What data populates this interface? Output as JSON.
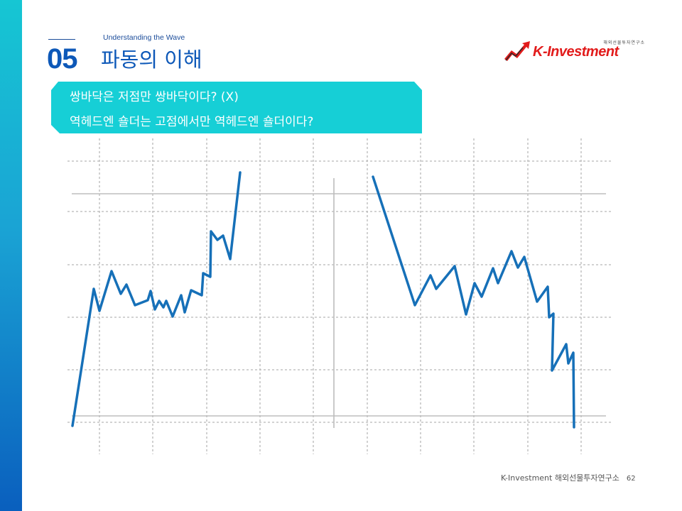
{
  "header": {
    "subtitle": "Understanding the Wave",
    "section_number": "05",
    "title": "파동의 이해"
  },
  "logo": {
    "small_text": "해외선물투자연구소",
    "brand": "K-Investment",
    "brand_color": "#e21b1b"
  },
  "callout": {
    "line1": "쌍바닥은 저점만 쌍바닥이다? (X)",
    "line2": "역헤드엔 숄더는 고점에서만 역헤드엔 숄더이다?",
    "color": "#16cfd6"
  },
  "footer": {
    "text": "K-Investment 해외선물투자연구소",
    "page": "62"
  },
  "colors": {
    "accent": "#0d58b8",
    "line": "#1670b8",
    "grid": "#b5b5b5"
  }
}
